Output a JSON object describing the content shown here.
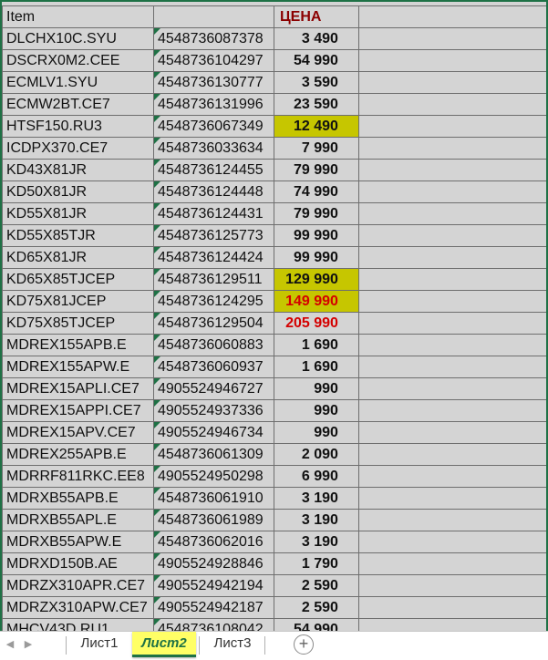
{
  "header": {
    "item": "Item",
    "code": "",
    "price": "ЦЕНА"
  },
  "rows": [
    {
      "item": "DLCHX10C.SYU",
      "code": "4548736087378",
      "price": "3 490",
      "hl": false,
      "red": false
    },
    {
      "item": "DSCRX0M2.CEE",
      "code": "4548736104297",
      "price": "54 990",
      "hl": false,
      "red": false
    },
    {
      "item": "ECMLV1.SYU",
      "code": "4548736130777",
      "price": "3 590",
      "hl": false,
      "red": false
    },
    {
      "item": "ECMW2BT.CE7",
      "code": "4548736131996",
      "price": "23 590",
      "hl": false,
      "red": false
    },
    {
      "item": "HTSF150.RU3",
      "code": "4548736067349",
      "price": "12 490",
      "hl": true,
      "red": false
    },
    {
      "item": "ICDPX370.CE7",
      "code": "4548736033634",
      "price": "7 990",
      "hl": false,
      "red": false
    },
    {
      "item": "KD43X81JR",
      "code": "4548736124455",
      "price": "79 990",
      "hl": false,
      "red": false
    },
    {
      "item": "KD50X81JR",
      "code": "4548736124448",
      "price": "74 990",
      "hl": false,
      "red": false
    },
    {
      "item": "KD55X81JR",
      "code": "4548736124431",
      "price": "79 990",
      "hl": false,
      "red": false
    },
    {
      "item": "KD55X85TJR",
      "code": "4548736125773",
      "price": "99 990",
      "hl": false,
      "red": false
    },
    {
      "item": "KD65X81JR",
      "code": "4548736124424",
      "price": "99 990",
      "hl": false,
      "red": false
    },
    {
      "item": "KD65X85TJCEP",
      "code": "4548736129511",
      "price": "129 990",
      "hl": true,
      "red": false
    },
    {
      "item": "KD75X81JCEP",
      "code": "4548736124295",
      "price": "149 990",
      "hl": true,
      "red": true
    },
    {
      "item": "KD75X85TJCEP",
      "code": "4548736129504",
      "price": "205 990",
      "hl": false,
      "red": true
    },
    {
      "item": "MDREX155APB.E",
      "code": "4548736060883",
      "price": "1 690",
      "hl": false,
      "red": false
    },
    {
      "item": "MDREX155APW.E",
      "code": "4548736060937",
      "price": "1 690",
      "hl": false,
      "red": false
    },
    {
      "item": "MDREX15APLI.CE7",
      "code": "4905524946727",
      "price": "990",
      "hl": false,
      "red": false
    },
    {
      "item": "MDREX15APPI.CE7",
      "code": "4905524937336",
      "price": "990",
      "hl": false,
      "red": false
    },
    {
      "item": "MDREX15APV.CE7",
      "code": "4905524946734",
      "price": "990",
      "hl": false,
      "red": false
    },
    {
      "item": "MDREX255APB.E",
      "code": "4548736061309",
      "price": "2 090",
      "hl": false,
      "red": false
    },
    {
      "item": "MDRRF811RKC.EE8",
      "code": "4905524950298",
      "price": "6 990",
      "hl": false,
      "red": false
    },
    {
      "item": "MDRXB55APB.E",
      "code": "4548736061910",
      "price": "3 190",
      "hl": false,
      "red": false
    },
    {
      "item": "MDRXB55APL.E",
      "code": "4548736061989",
      "price": "3 190",
      "hl": false,
      "red": false
    },
    {
      "item": "MDRXB55APW.E",
      "code": "4548736062016",
      "price": "3 190",
      "hl": false,
      "red": false
    },
    {
      "item": "MDRXD150B.AE",
      "code": "4905524928846",
      "price": "1 790",
      "hl": false,
      "red": false
    },
    {
      "item": "MDRZX310APR.CE7",
      "code": "4905524942194",
      "price": "2 590",
      "hl": false,
      "red": false
    },
    {
      "item": "MDRZX310APW.CE7",
      "code": "4905524942187",
      "price": "2 590",
      "hl": false,
      "red": false
    },
    {
      "item": "MHCV43D.RU1",
      "code": "4548736108042",
      "price": "54 990",
      "hl": false,
      "red": false
    }
  ],
  "tabs": {
    "sheet1": "Лист1",
    "sheet2": "Лист2",
    "sheet3": "Лист3",
    "add": "+"
  },
  "colors": {
    "accent": "#1e7145",
    "highlight": "#c6c600",
    "price_red": "#d40000",
    "header_price": "#8b0000"
  }
}
